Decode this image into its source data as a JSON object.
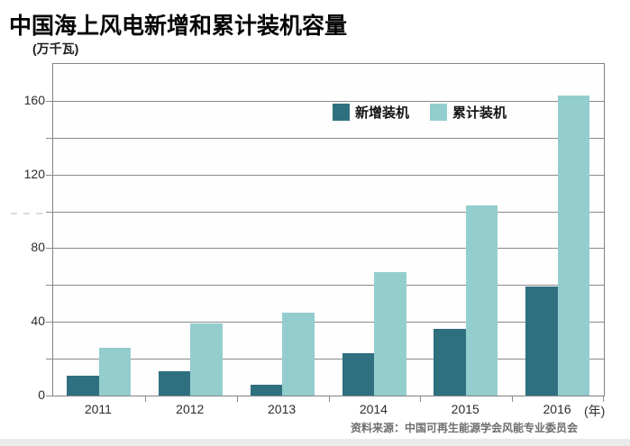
{
  "page": {
    "title": "中国海上风电新增和累计装机容量",
    "unit_label": "(万千瓦)",
    "x_axis_unit": "(年)",
    "source": "资料来源：中国可再生能源学会风能专业委员会"
  },
  "colors": {
    "new_installed": "#2f7080",
    "cumulative": "#94cdce",
    "grid": "#8a8a8a",
    "title_text": "#050505",
    "source_text": "#6e6e6e"
  },
  "chart_data": {
    "type": "bar",
    "title": "中国海上风电新增和累计装机容量",
    "categories": [
      "2011",
      "2012",
      "2013",
      "2014",
      "2015",
      "2016"
    ],
    "series": [
      {
        "name": "新增装机",
        "key": "new-installed",
        "color": "#2f7080",
        "values": [
          11,
          13,
          6,
          23,
          36,
          59
        ]
      },
      {
        "name": "累计装机",
        "key": "cumulative",
        "color": "#94cdce",
        "values": [
          26,
          39,
          45,
          67,
          103,
          163
        ]
      }
    ],
    "ylabel": "(万千瓦)",
    "xlabel": "(年)",
    "ylim": [
      0,
      180
    ],
    "ytick_step": 20,
    "ytick_labels": [
      0,
      40,
      80,
      120,
      160
    ],
    "grid": true,
    "legend_position": "inside-top-center"
  }
}
